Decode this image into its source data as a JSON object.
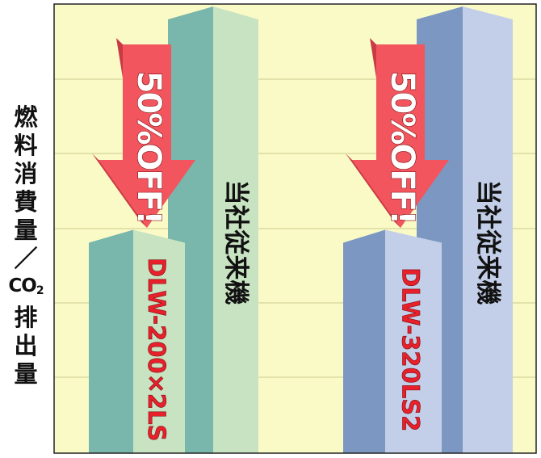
{
  "chart_data": {
    "type": "bar",
    "title": "",
    "xlabel": "",
    "ylabel": "燃料消費量／CO2排出量",
    "ylabel_parts": {
      "prefix": [
        "燃",
        "料",
        "消",
        "費",
        "量",
        "／"
      ],
      "co2": "CO",
      "co2_sub": "2",
      "suffix": [
        "排",
        "出",
        "量"
      ]
    },
    "categories": [
      "DLW-200×2LS",
      "DLW-320LS2"
    ],
    "series": [
      {
        "name": "当社従来機",
        "values": [
          100,
          100
        ]
      },
      {
        "name": "",
        "values": [
          50,
          50
        ]
      }
    ],
    "bar_labels": {
      "new": [
        "DLW-200×2LS",
        "DLW-320LS2"
      ],
      "conventional": [
        "当社従来機",
        "当社従来機"
      ]
    },
    "reduction_label": "50%OFF!",
    "ylim": [
      0,
      100
    ],
    "grid": true,
    "colors": {
      "plot_bg": "#fafac6",
      "grid": "#c9c98e",
      "left_front": "#c8e3c2",
      "left_side": "#79b6ab",
      "right_front": "#c3cfe8",
      "right_side": "#7c98c2",
      "arrow": "#f2555d",
      "arrow_side": "#c83a44",
      "arrow_text": "#ffffff",
      "label_red": "#e8202b",
      "label_black": "#111111"
    }
  }
}
